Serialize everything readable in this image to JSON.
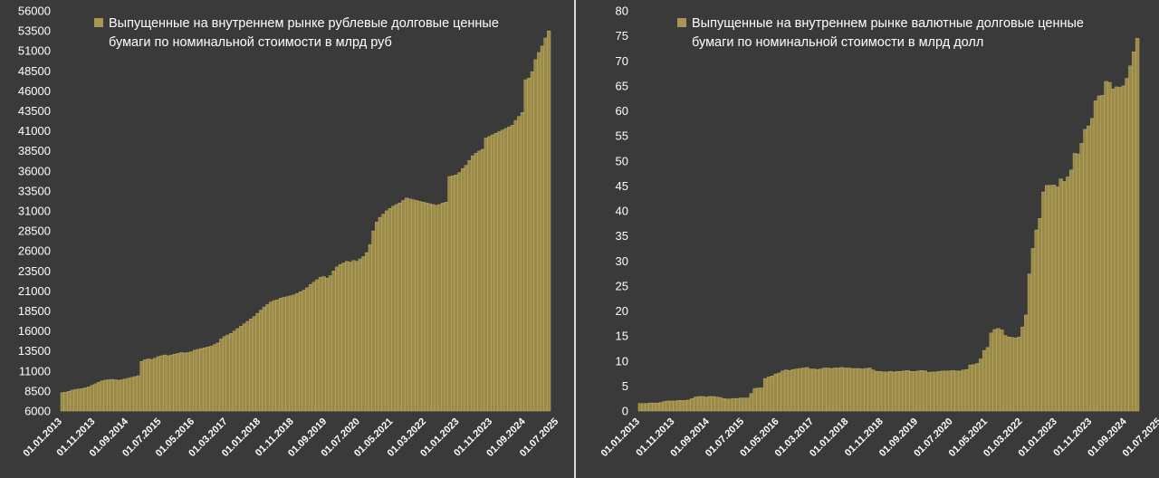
{
  "colors": {
    "background": "#3a3a3a",
    "bar_fill": "#9a8a49",
    "bar_stroke": "#c2b06a",
    "legend_swatch": "#a89655",
    "text": "#ffffff"
  },
  "chart_data": [
    {
      "type": "bar",
      "legend": [
        "Выпущенные на внутреннем рынке рублевые долговые ценные",
        "бумаги по номинальной стоимости в млрд руб"
      ],
      "legend_placement": "top-left",
      "grid": false,
      "ylim": [
        6000,
        56000
      ],
      "yticks": [
        "6000",
        "8500",
        "11000",
        "13500",
        "16000",
        "18500",
        "21000",
        "23500",
        "26000",
        "28500",
        "31000",
        "33500",
        "36000",
        "38500",
        "41000",
        "43500",
        "46000",
        "48500",
        "51000",
        "53500",
        "56000"
      ],
      "xticks": [
        "01.01.2013",
        "01.11.2013",
        "01.09.2014",
        "01.07.2015",
        "01.05.2016",
        "01.03.2017",
        "01.01.2018",
        "01.11.2018",
        "01.09.2019",
        "01.07.2020",
        "01.05.2021",
        "01.03.2022",
        "01.01.2023",
        "01.11.2023",
        "01.09.2024",
        "01.07.2025"
      ],
      "series": [
        {
          "values": [
            8300,
            8350,
            8450,
            8600,
            8700,
            8750,
            8800,
            8900,
            9000,
            9200,
            9400,
            9600,
            9750,
            9850,
            9900,
            9950,
            9900,
            9850,
            9900,
            10000,
            10100,
            10200,
            10300,
            10400,
            12200,
            12400,
            12500,
            12450,
            12600,
            12800,
            12900,
            13000,
            12900,
            13000,
            13100,
            13200,
            13300,
            13250,
            13300,
            13400,
            13600,
            13700,
            13800,
            13900,
            14000,
            14100,
            14300,
            14500,
            15000,
            15300,
            15500,
            15700,
            16000,
            16300,
            16600,
            16900,
            17200,
            17500,
            17800,
            18200,
            18600,
            19000,
            19300,
            19600,
            19800,
            19900,
            20100,
            20200,
            20300,
            20400,
            20500,
            20700,
            20900,
            21100,
            21400,
            21800,
            22100,
            22400,
            22700,
            22800,
            22600,
            22900,
            23500,
            24000,
            24300,
            24500,
            24700,
            24600,
            24800,
            24700,
            25000,
            25300,
            25800,
            26800,
            28500,
            29600,
            30200,
            30600,
            31000,
            31300,
            31600,
            31800,
            32000,
            32300,
            32600,
            32500,
            32400,
            32300,
            32200,
            32100,
            32000,
            31900,
            31800,
            31700,
            31800,
            32000,
            32100,
            35300,
            35400,
            35500,
            35800,
            36300,
            36700,
            37300,
            37900,
            38200,
            38500,
            38700,
            40100,
            40300,
            40500,
            40700,
            40900,
            41100,
            41300,
            41500,
            41700,
            42300,
            42800,
            43300,
            47400,
            47600,
            48400,
            49900,
            50800,
            51600,
            52600,
            53500
          ]
        }
      ]
    },
    {
      "type": "bar",
      "legend": [
        "Выпущенные на внутреннем рынке валютные долговые ценные",
        "бумаги по номинальной стоимости в млрд долл"
      ],
      "legend_placement": "top-left",
      "grid": false,
      "ylim": [
        0,
        80
      ],
      "yticks": [
        "0",
        "5",
        "10",
        "15",
        "20",
        "25",
        "30",
        "35",
        "40",
        "45",
        "50",
        "55",
        "60",
        "65",
        "70",
        "75",
        "80"
      ],
      "xticks": [
        "01.01.2013",
        "01.11.2013",
        "01.09.2014",
        "01.07.2015",
        "01.05.2016",
        "01.03.2017",
        "01.01.2018",
        "01.11.2018",
        "01.09.2019",
        "01.07.2020",
        "01.05.2021",
        "01.03.2022",
        "01.01.2023",
        "01.11.2023",
        "01.09.2024",
        "01.07.2025"
      ],
      "series": [
        {
          "values": [
            1.5,
            1.5,
            1.5,
            1.6,
            1.6,
            1.6,
            1.7,
            1.9,
            2.0,
            2.0,
            2.0,
            2.1,
            2.1,
            2.1,
            2.2,
            2.5,
            2.8,
            2.9,
            2.9,
            2.8,
            2.9,
            2.9,
            2.8,
            2.7,
            2.5,
            2.4,
            2.4,
            2.5,
            2.5,
            2.6,
            2.6,
            2.6,
            3.5,
            4.5,
            4.6,
            4.6,
            6.5,
            6.8,
            7.0,
            7.4,
            7.6,
            8.0,
            8.2,
            8.1,
            8.3,
            8.4,
            8.5,
            8.6,
            8.7,
            8.4,
            8.4,
            8.3,
            8.4,
            8.6,
            8.6,
            8.5,
            8.6,
            8.6,
            8.7,
            8.6,
            8.6,
            8.5,
            8.5,
            8.5,
            8.4,
            8.5,
            8.6,
            8.2,
            7.9,
            7.9,
            7.8,
            7.8,
            7.9,
            7.8,
            7.9,
            7.9,
            8.0,
            8.1,
            7.9,
            7.9,
            8.0,
            8.1,
            8.0,
            7.7,
            7.8,
            7.8,
            7.9,
            8.0,
            8.0,
            8.0,
            8.1,
            8.0,
            8.0,
            8.2,
            8.3,
            9.2,
            9.3,
            9.5,
            10.4,
            12.1,
            12.7,
            15.6,
            16.3,
            16.5,
            16.2,
            15.1,
            14.8,
            14.7,
            14.6,
            14.8,
            16.8,
            19.2,
            27.4,
            32.5,
            36.2,
            38.5,
            43.8,
            45.1,
            45.1,
            45.2,
            44.8,
            46.4,
            45.9,
            46.8,
            48.2,
            51.5,
            51.4,
            53.5,
            56.3,
            57.0,
            58.5,
            62.0,
            63.0,
            63.1,
            65.9,
            65.7,
            64.4,
            64.8,
            64.7,
            65.0,
            66.5,
            69.0,
            71.8,
            74.5
          ]
        }
      ]
    }
  ]
}
